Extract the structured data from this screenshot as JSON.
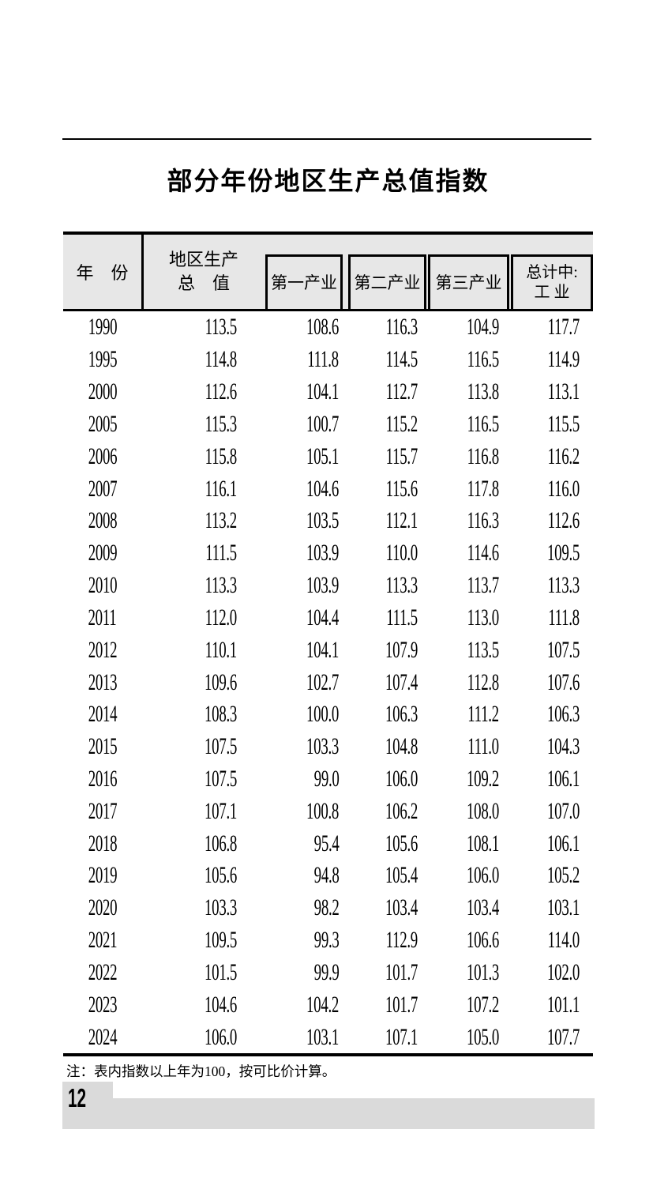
{
  "title": "部分年份地区生产总值指数",
  "note": "注：表内指数以上年为100，按可比价计算。",
  "page_number": "12",
  "colors": {
    "header_bg": "#e7e7e7",
    "footer_bg": "#dadada",
    "border": "#000000",
    "text": "#000000"
  },
  "table": {
    "header": {
      "year": "年　份",
      "gdp_line1": "地区生产",
      "gdp_line2": "总　值",
      "primary": "第一产业",
      "secondary": "第二产业",
      "tertiary": "第三产业",
      "industry_line1": "总计中:",
      "industry_line2": "工 业"
    },
    "rows": [
      {
        "year": "1990",
        "gdp": "113.5",
        "primary": "108.6",
        "secondary": "116.3",
        "tertiary": "104.9",
        "industry": "117.7"
      },
      {
        "year": "1995",
        "gdp": "114.8",
        "primary": "111.8",
        "secondary": "114.5",
        "tertiary": "116.5",
        "industry": "114.9"
      },
      {
        "year": "2000",
        "gdp": "112.6",
        "primary": "104.1",
        "secondary": "112.7",
        "tertiary": "113.8",
        "industry": "113.1"
      },
      {
        "year": "2005",
        "gdp": "115.3",
        "primary": "100.7",
        "secondary": "115.2",
        "tertiary": "116.5",
        "industry": "115.5"
      },
      {
        "year": "2006",
        "gdp": "115.8",
        "primary": "105.1",
        "secondary": "115.7",
        "tertiary": "116.8",
        "industry": "116.2"
      },
      {
        "year": "2007",
        "gdp": "116.1",
        "primary": "104.6",
        "secondary": "115.6",
        "tertiary": "117.8",
        "industry": "116.0"
      },
      {
        "year": "2008",
        "gdp": "113.2",
        "primary": "103.5",
        "secondary": "112.1",
        "tertiary": "116.3",
        "industry": "112.6"
      },
      {
        "year": "2009",
        "gdp": "111.5",
        "primary": "103.9",
        "secondary": "110.0",
        "tertiary": "114.6",
        "industry": "109.5"
      },
      {
        "year": "2010",
        "gdp": "113.3",
        "primary": "103.9",
        "secondary": "113.3",
        "tertiary": "113.7",
        "industry": "113.3"
      },
      {
        "year": "2011",
        "gdp": "112.0",
        "primary": "104.4",
        "secondary": "111.5",
        "tertiary": "113.0",
        "industry": "111.8"
      },
      {
        "year": "2012",
        "gdp": "110.1",
        "primary": "104.1",
        "secondary": "107.9",
        "tertiary": "113.5",
        "industry": "107.5"
      },
      {
        "year": "2013",
        "gdp": "109.6",
        "primary": "102.7",
        "secondary": "107.4",
        "tertiary": "112.8",
        "industry": "107.6"
      },
      {
        "year": "2014",
        "gdp": "108.3",
        "primary": "100.0",
        "secondary": "106.3",
        "tertiary": "111.2",
        "industry": "106.3"
      },
      {
        "year": "2015",
        "gdp": "107.5",
        "primary": "103.3",
        "secondary": "104.8",
        "tertiary": "111.0",
        "industry": "104.3"
      },
      {
        "year": "2016",
        "gdp": "107.5",
        "primary": "99.0",
        "secondary": "106.0",
        "tertiary": "109.2",
        "industry": "106.1"
      },
      {
        "year": "2017",
        "gdp": "107.1",
        "primary": "100.8",
        "secondary": "106.2",
        "tertiary": "108.0",
        "industry": "107.0"
      },
      {
        "year": "2018",
        "gdp": "106.8",
        "primary": "95.4",
        "secondary": "105.6",
        "tertiary": "108.1",
        "industry": "106.1"
      },
      {
        "year": "2019",
        "gdp": "105.6",
        "primary": "94.8",
        "secondary": "105.4",
        "tertiary": "106.0",
        "industry": "105.2"
      },
      {
        "year": "2020",
        "gdp": "103.3",
        "primary": "98.2",
        "secondary": "103.4",
        "tertiary": "103.4",
        "industry": "103.1"
      },
      {
        "year": "2021",
        "gdp": "109.5",
        "primary": "99.3",
        "secondary": "112.9",
        "tertiary": "106.6",
        "industry": "114.0"
      },
      {
        "year": "2022",
        "gdp": "101.5",
        "primary": "99.9",
        "secondary": "101.7",
        "tertiary": "101.3",
        "industry": "102.0"
      },
      {
        "year": "2023",
        "gdp": "104.6",
        "primary": "104.2",
        "secondary": "101.7",
        "tertiary": "107.2",
        "industry": "101.1"
      },
      {
        "year": "2024",
        "gdp": "106.0",
        "primary": "103.1",
        "secondary": "107.1",
        "tertiary": "105.0",
        "industry": "107.7"
      }
    ]
  }
}
